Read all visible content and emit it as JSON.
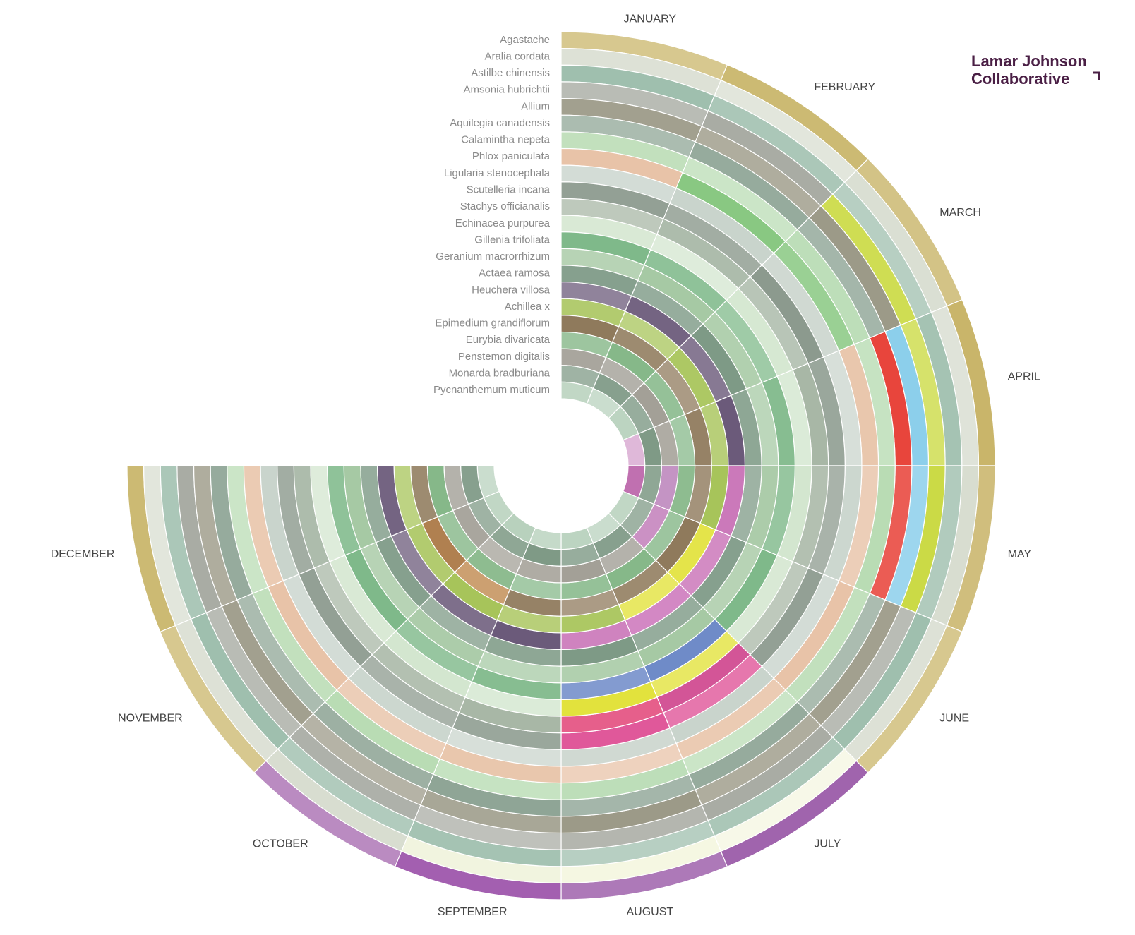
{
  "chart_data": {
    "type": "radial-calendar",
    "logo": [
      "Lamar Johnson",
      "Collaborative"
    ],
    "months": [
      "JANUARY",
      "FEBRUARY",
      "MARCH",
      "APRIL",
      "MAY",
      "JUNE",
      "JULY",
      "AUGUST",
      "SEPTEMBER",
      "OCTOBER",
      "NOVEMBER",
      "DECEMBER"
    ],
    "plants": [
      "Agastache",
      "Aralia cordata",
      "Astilbe chinensis",
      "Amsonia hubrichtii",
      "Allium",
      "Aquilegia canadensis",
      "Calamintha nepeta",
      "Phlox paniculata",
      "Ligularia stenocephala",
      "Scutelleria incana",
      "Stachys officianalis",
      "Echinacea purpurea",
      "Gillenia trifoliata",
      "Geranium macrorrhizum",
      "Actaea ramosa",
      "Heuchera villosa",
      "Achillea x",
      "Epimedium grandiflorum",
      "Eurybia divaricata",
      "Penstemon digitalis",
      "Monarda bradburiana",
      "Pycnanthemum muticum"
    ]
  }
}
